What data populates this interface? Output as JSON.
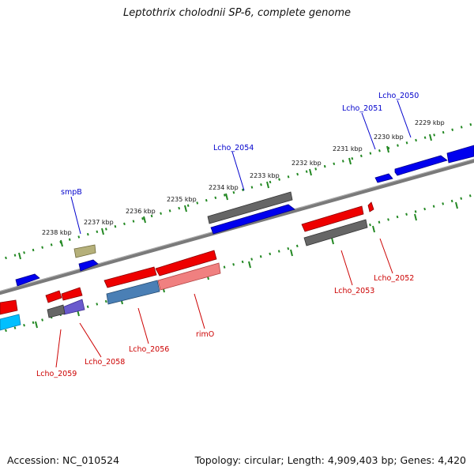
{
  "title": "Leptothrix cholodnii SP-6, complete genome",
  "accession": "Accession: NC_010524",
  "stats": "Topology: circular; Length: 4,909,403 bp; Genes: 4,420",
  "colors": {
    "forward": "#0000ee",
    "reverse": "#ee0000",
    "backbone": "#777777",
    "tick": "#228822",
    "label_forward": "#0000cc",
    "label_reverse": "#cc0000"
  },
  "kbp_labels": [
    "2229 kbp",
    "2230 kbp",
    "2231 kbp",
    "2232 kbp",
    "2233 kbp",
    "2234 kbp",
    "2235 kbp",
    "2236 kbp",
    "2237 kbp",
    "2238 kbp"
  ],
  "gene_labels": {
    "lcho_2050": "Lcho_2050",
    "lcho_2051": "Lcho_2051",
    "lcho_2054": "Lcho_2054",
    "smpb": "smpB",
    "lcho_2052": "Lcho_2052",
    "lcho_2053": "Lcho_2053",
    "rimo": "rimO",
    "lcho_2056": "Lcho_2056",
    "lcho_2058": "Lcho_2058",
    "lcho_2059": "Lcho_2059"
  }
}
